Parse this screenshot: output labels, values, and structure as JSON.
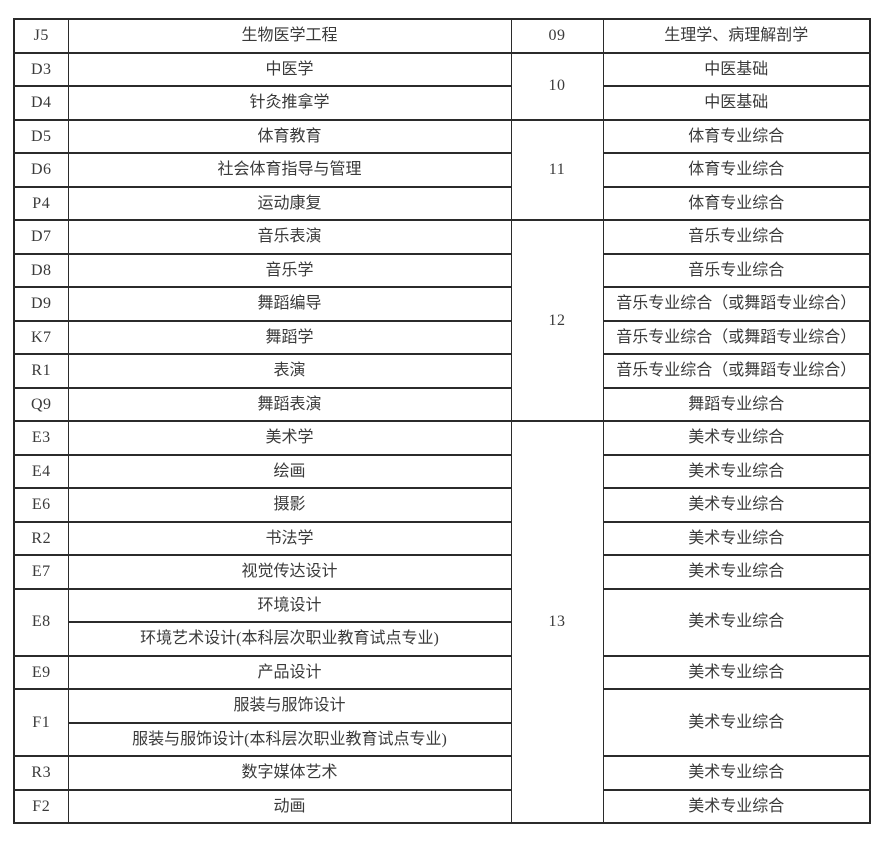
{
  "page": {
    "background_color": "#ffffff",
    "text_color": "#3a3a3a",
    "border_color": "#2b2b2b"
  },
  "table": {
    "groups": [
      {
        "label": "09",
        "span": 1
      },
      {
        "label": "10",
        "span": 2
      },
      {
        "label": "11",
        "span": 3
      },
      {
        "label": "12",
        "span": 6
      },
      {
        "label": "13",
        "span": 12
      }
    ],
    "rows": [
      {
        "code": "J5",
        "major": "生物医学工程",
        "subject": "生理学、病理解剖学"
      },
      {
        "code": "D3",
        "major": "中医学",
        "subject": "中医基础"
      },
      {
        "code": "D4",
        "major": "针灸推拿学",
        "subject": "中医基础"
      },
      {
        "code": "D5",
        "major": "体育教育",
        "subject": "体育专业综合"
      },
      {
        "code": "D6",
        "major": "社会体育指导与管理",
        "subject": "体育专业综合"
      },
      {
        "code": "P4",
        "major": "运动康复",
        "subject": "体育专业综合"
      },
      {
        "code": "D7",
        "major": "音乐表演",
        "subject": "音乐专业综合"
      },
      {
        "code": "D8",
        "major": "音乐学",
        "subject": "音乐专业综合"
      },
      {
        "code": "D9",
        "major": "舞蹈编导",
        "subject": "音乐专业综合（或舞蹈专业综合）"
      },
      {
        "code": "K7",
        "major": "舞蹈学",
        "subject": "音乐专业综合（或舞蹈专业综合）"
      },
      {
        "code": "R1",
        "major": "表演",
        "subject": "音乐专业综合（或舞蹈专业综合）"
      },
      {
        "code": "Q9",
        "major": "舞蹈表演",
        "subject": "舞蹈专业综合"
      },
      {
        "code": "E3",
        "major": "美术学",
        "subject": "美术专业综合"
      },
      {
        "code": "E4",
        "major": "绘画",
        "subject": "美术专业综合"
      },
      {
        "code": "E6",
        "major": "摄影",
        "subject": "美术专业综合"
      },
      {
        "code": "R2",
        "major": "书法学",
        "subject": "美术专业综合"
      },
      {
        "code": "E7",
        "major": "视觉传达设计",
        "subject": "美术专业综合"
      },
      {
        "code": "E8",
        "codeSpan": 2,
        "major": "环境设计",
        "subject": "美术专业综合",
        "subjectSpan": 2
      },
      {
        "major": "环境艺术设计(本科层次职业教育试点专业)"
      },
      {
        "code": "E9",
        "major": "产品设计",
        "subject": "美术专业综合"
      },
      {
        "code": "F1",
        "codeSpan": 2,
        "major": "服装与服饰设计",
        "subject": "美术专业综合",
        "subjectSpan": 2
      },
      {
        "major": "服装与服饰设计(本科层次职业教育试点专业)"
      },
      {
        "code": "R3",
        "major": "数字媒体艺术",
        "subject": "美术专业综合"
      },
      {
        "code": "F2",
        "major": "动画",
        "subject": "美术专业综合"
      }
    ]
  }
}
